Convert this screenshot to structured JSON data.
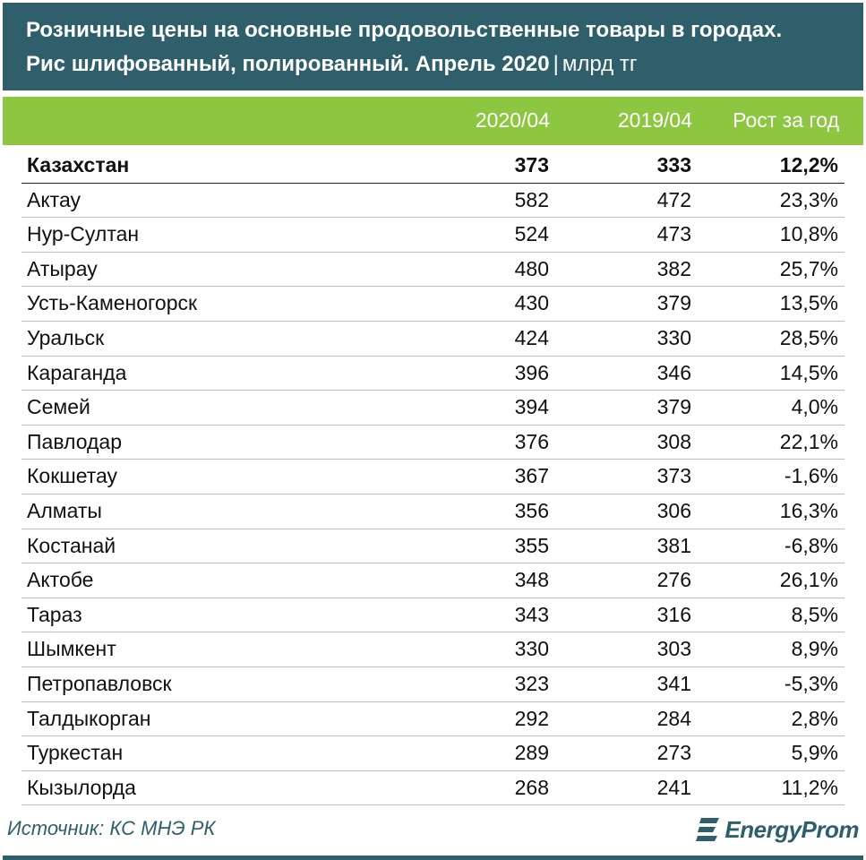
{
  "header": {
    "title_line1": "Розничные цены на основные продовольственные товары в городах.",
    "title_line2": "Рис шлифованный, полированный. Апрель 2020",
    "separator": "|",
    "unit": "млрд тг"
  },
  "columns": [
    "2020/04",
    "2019/04",
    "Рост за год"
  ],
  "rows": [
    {
      "city": "Казахстан",
      "v2020": "373",
      "v2019": "333",
      "growth": "12,2%"
    },
    {
      "city": "Актау",
      "v2020": "582",
      "v2019": "472",
      "growth": "23,3%"
    },
    {
      "city": "Нур-Султан",
      "v2020": "524",
      "v2019": "473",
      "growth": "10,8%"
    },
    {
      "city": "Атырау",
      "v2020": "480",
      "v2019": "382",
      "growth": "25,7%"
    },
    {
      "city": "Усть-Каменогорск",
      "v2020": "430",
      "v2019": "379",
      "growth": "13,5%"
    },
    {
      "city": "Уральск",
      "v2020": "424",
      "v2019": "330",
      "growth": "28,5%"
    },
    {
      "city": "Караганда",
      "v2020": "396",
      "v2019": "346",
      "growth": "14,5%"
    },
    {
      "city": "Семей",
      "v2020": "394",
      "v2019": "379",
      "growth": "4,0%"
    },
    {
      "city": "Павлодар",
      "v2020": "376",
      "v2019": "308",
      "growth": "22,1%"
    },
    {
      "city": "Кокшетау",
      "v2020": "367",
      "v2019": "373",
      "growth": "-1,6%"
    },
    {
      "city": "Алматы",
      "v2020": "356",
      "v2019": "306",
      "growth": "16,3%"
    },
    {
      "city": "Костанай",
      "v2020": "355",
      "v2019": "381",
      "growth": "-6,8%"
    },
    {
      "city": "Актобе",
      "v2020": "348",
      "v2019": "276",
      "growth": "26,1%"
    },
    {
      "city": "Тараз",
      "v2020": "343",
      "v2019": "316",
      "growth": "8,5%"
    },
    {
      "city": "Шымкент",
      "v2020": "330",
      "v2019": "303",
      "growth": "8,9%"
    },
    {
      "city": "Петропавловск",
      "v2020": "323",
      "v2019": "341",
      "growth": "-5,3%"
    },
    {
      "city": "Талдыкорган",
      "v2020": "292",
      "v2019": "284",
      "growth": "2,8%"
    },
    {
      "city": "Туркестан",
      "v2020": "289",
      "v2019": "273",
      "growth": "5,9%"
    },
    {
      "city": "Кызылорда",
      "v2020": "268",
      "v2019": "241",
      "growth": "11,2%"
    }
  ],
  "source": "Источник: КС МНЭ РК",
  "logo": "EnergyProm",
  "colors": {
    "header_bg": "#2e5f6b",
    "column_header_bg": "#8dc641",
    "text": "#111111"
  },
  "chart_data": {
    "type": "table",
    "title": "Розничные цены на основные продовольственные товары в городах. Рис шлифованный, полированный. Апрель 2020",
    "unit": "млрд тг",
    "columns": [
      "2020/04",
      "2019/04",
      "Рост за год"
    ],
    "categories": [
      "Казахстан",
      "Актау",
      "Нур-Султан",
      "Атырау",
      "Усть-Каменогорск",
      "Уральск",
      "Караганда",
      "Семей",
      "Павлодар",
      "Кокшетау",
      "Алматы",
      "Костанай",
      "Актобе",
      "Тараз",
      "Шымкент",
      "Петропавловск",
      "Талдыкорган",
      "Туркестан",
      "Кызылорда"
    ],
    "series": [
      {
        "name": "2020/04",
        "values": [
          373,
          582,
          524,
          480,
          430,
          424,
          396,
          394,
          376,
          367,
          356,
          355,
          348,
          343,
          330,
          323,
          292,
          289,
          268
        ]
      },
      {
        "name": "2019/04",
        "values": [
          333,
          472,
          473,
          382,
          379,
          330,
          346,
          379,
          308,
          373,
          306,
          381,
          276,
          316,
          303,
          341,
          284,
          273,
          241
        ]
      },
      {
        "name": "Рост за год",
        "values": [
          12.2,
          23.3,
          10.8,
          25.7,
          13.5,
          28.5,
          14.5,
          4.0,
          22.1,
          -1.6,
          16.3,
          -6.8,
          26.1,
          8.5,
          8.9,
          -5.3,
          2.8,
          5.9,
          11.2
        ]
      }
    ]
  }
}
